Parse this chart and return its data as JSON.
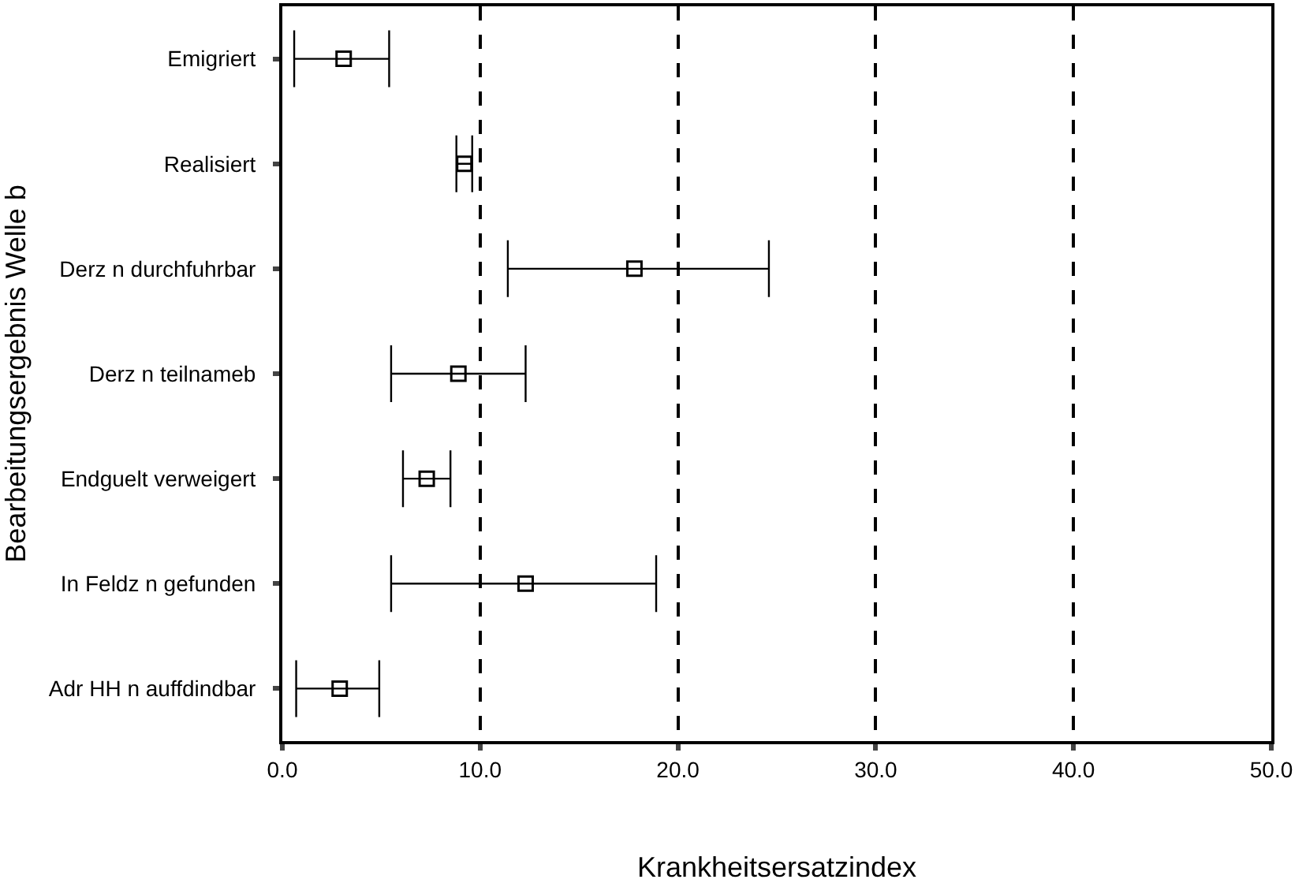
{
  "chart_data": {
    "type": "scatter",
    "orientation": "horizontal",
    "xlabel": "Krankheitsersatzindex",
    "ylabel": "Bearbeitungsergebnis Welle b",
    "categories": [
      "Emigriert",
      "Realisiert",
      "Derz n durchfuhrbar",
      "Derz n teilnameb",
      "Endguelt verweigert",
      "In Feldz n gefunden",
      "Adr HH n auffdindbar"
    ],
    "values": [
      3.1,
      9.2,
      17.8,
      8.9,
      7.3,
      12.3,
      2.9
    ],
    "errors": [
      [
        0.6,
        5.4
      ],
      [
        8.8,
        9.6
      ],
      [
        11.4,
        24.6
      ],
      [
        5.5,
        12.3
      ],
      [
        6.1,
        8.5
      ],
      [
        5.5,
        18.9
      ],
      [
        0.7,
        4.9
      ]
    ],
    "color": "#000000",
    "marker": "square",
    "grid": "x",
    "xlim": [
      0,
      50
    ],
    "xticks": [
      {
        "value": 0,
        "label": "0.0"
      },
      {
        "value": 10,
        "label": "10.0"
      },
      {
        "value": 20,
        "label": "20.0"
      },
      {
        "value": 30,
        "label": "30.0"
      },
      {
        "value": 40,
        "label": "40.0"
      },
      {
        "value": 50,
        "label": "50.0"
      }
    ]
  }
}
